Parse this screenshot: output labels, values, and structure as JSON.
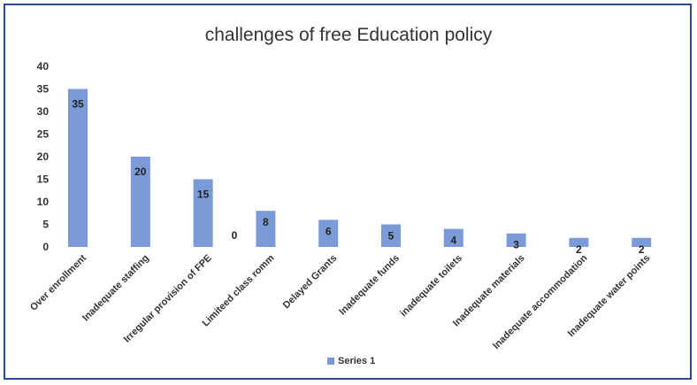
{
  "chart_data": {
    "type": "bar",
    "title": "challenges of free Education policy",
    "categories": [
      "Over enrollment",
      "Inadequate staffing",
      "Irregular provision of FPE",
      "Limiteed class romm",
      "Delayed Grants",
      "Inadequate funds",
      "inadequate toilets",
      "Inadequate materials",
      "Inadequate accommodation",
      "Inadequate water points"
    ],
    "series": [
      {
        "name": "Series 1",
        "values": [
          35,
          20,
          15,
          8,
          6,
          5,
          4,
          3,
          2,
          2
        ],
        "color": "#7a9bd8"
      }
    ],
    "extra_label": {
      "text": "0",
      "after_category_index": 2
    },
    "yticks": [
      0,
      5,
      10,
      15,
      20,
      25,
      30,
      35,
      40
    ],
    "ylim": [
      0,
      40
    ],
    "grid": false,
    "legend": "bottom"
  }
}
